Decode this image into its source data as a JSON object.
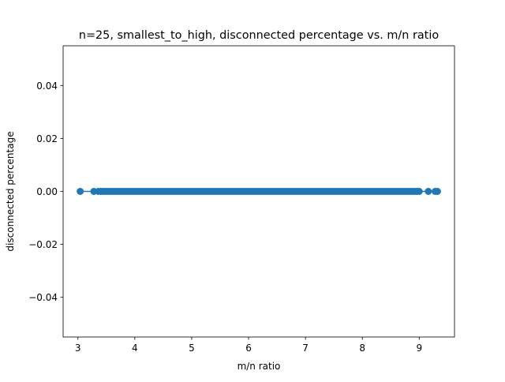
{
  "chart_data": {
    "type": "line",
    "title": "n=25, smallest_to_high, disconnected percentage vs. m/n ratio",
    "xlabel": "m/n ratio",
    "ylabel": "disconnected percentage",
    "xlim": [
      2.74,
      9.62
    ],
    "ylim": [
      -0.055,
      0.055
    ],
    "xticks": [
      3,
      4,
      5,
      6,
      7,
      8,
      9
    ],
    "xtick_labels": [
      "3",
      "4",
      "5",
      "6",
      "7",
      "8",
      "9"
    ],
    "yticks": [
      -0.04,
      -0.02,
      0.0,
      0.02,
      0.04
    ],
    "ytick_labels": [
      "−0.04",
      "−0.02",
      "0.00",
      "0.02",
      "0.04"
    ],
    "grid": false,
    "marker": "o",
    "color": "#1f77b4",
    "series": [
      {
        "x": [
          3.04,
          3.28,
          3.36,
          3.4,
          3.44,
          3.48,
          3.52,
          3.56,
          3.6,
          3.64,
          3.68,
          3.72,
          3.76,
          3.8,
          3.84,
          3.88,
          3.92,
          3.96,
          4.0,
          4.04,
          4.08,
          4.12,
          4.16,
          4.2,
          4.24,
          4.28,
          4.32,
          4.36,
          4.4,
          4.44,
          4.48,
          4.52,
          4.56,
          4.6,
          4.64,
          4.68,
          4.72,
          4.76,
          4.8,
          4.84,
          4.88,
          4.92,
          4.96,
          5.0,
          5.04,
          5.08,
          5.12,
          5.16,
          5.2,
          5.24,
          5.28,
          5.32,
          5.36,
          5.4,
          5.44,
          5.48,
          5.52,
          5.56,
          5.6,
          5.64,
          5.68,
          5.72,
          5.76,
          5.8,
          5.84,
          5.88,
          5.92,
          5.96,
          6.0,
          6.04,
          6.08,
          6.12,
          6.16,
          6.2,
          6.24,
          6.28,
          6.32,
          6.36,
          6.4,
          6.44,
          6.48,
          6.52,
          6.56,
          6.6,
          6.64,
          6.68,
          6.72,
          6.76,
          6.8,
          6.84,
          6.88,
          6.92,
          6.96,
          7.0,
          7.04,
          7.08,
          7.12,
          7.16,
          7.2,
          7.24,
          7.28,
          7.32,
          7.36,
          7.4,
          7.44,
          7.48,
          7.52,
          7.56,
          7.6,
          7.64,
          7.68,
          7.72,
          7.76,
          7.8,
          7.84,
          7.88,
          7.92,
          7.96,
          8.0,
          8.04,
          8.08,
          8.12,
          8.16,
          8.2,
          8.24,
          8.28,
          8.32,
          8.36,
          8.4,
          8.44,
          8.48,
          8.52,
          8.56,
          8.6,
          8.64,
          8.68,
          8.72,
          8.76,
          8.8,
          8.84,
          8.88,
          8.92,
          8.96,
          9.0,
          9.16,
          9.28,
          9.32
        ],
        "y": "all zero"
      }
    ]
  }
}
